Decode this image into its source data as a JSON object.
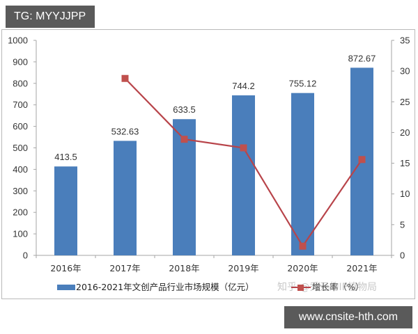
{
  "watermarks": {
    "top_tag": "TG: MYYJJPP",
    "bottom_tag": "www.cnsite-hth.com",
    "zhihu_overlay": "知乎 @秀元的IP植物局"
  },
  "colors": {
    "bar": "#4a7ebb",
    "line": "#b8444a",
    "marker": "#c0504d",
    "axis": "#a6a6a6"
  },
  "chart_data": {
    "type": "bar+line",
    "title": "",
    "categories": [
      "2016年",
      "2017年",
      "2018年",
      "2019年",
      "2020年",
      "2021年"
    ],
    "series": [
      {
        "name": "2016-2021年文创产品行业市场规模（亿元）",
        "type": "bar",
        "axis": "left",
        "values": [
          413.5,
          532.63,
          633.5,
          744.2,
          755.12,
          872.67
        ],
        "labels": [
          "413.5",
          "532.63",
          "633.5",
          "744.2",
          "755.12",
          "872.67"
        ]
      },
      {
        "name": "增长率（%）",
        "type": "line",
        "axis": "right",
        "values": [
          null,
          28.8,
          18.9,
          17.5,
          1.5,
          15.6
        ]
      }
    ],
    "left_axis": {
      "ylim": [
        0,
        1000
      ],
      "ticks": [
        "0",
        "100",
        "200",
        "300",
        "400",
        "500",
        "600",
        "700",
        "800",
        "900",
        "1000"
      ]
    },
    "right_axis": {
      "ylim": [
        0,
        35
      ],
      "ticks": [
        "0",
        "5",
        "10",
        "15",
        "20",
        "25",
        "30",
        "35"
      ]
    },
    "xlabel": "",
    "ylabel": "",
    "grid": false,
    "legend_position": "bottom"
  },
  "legend": {
    "bar_label": "2016-2021年文创产品行业市场规模（亿元）",
    "line_label": "增长率（%）"
  }
}
